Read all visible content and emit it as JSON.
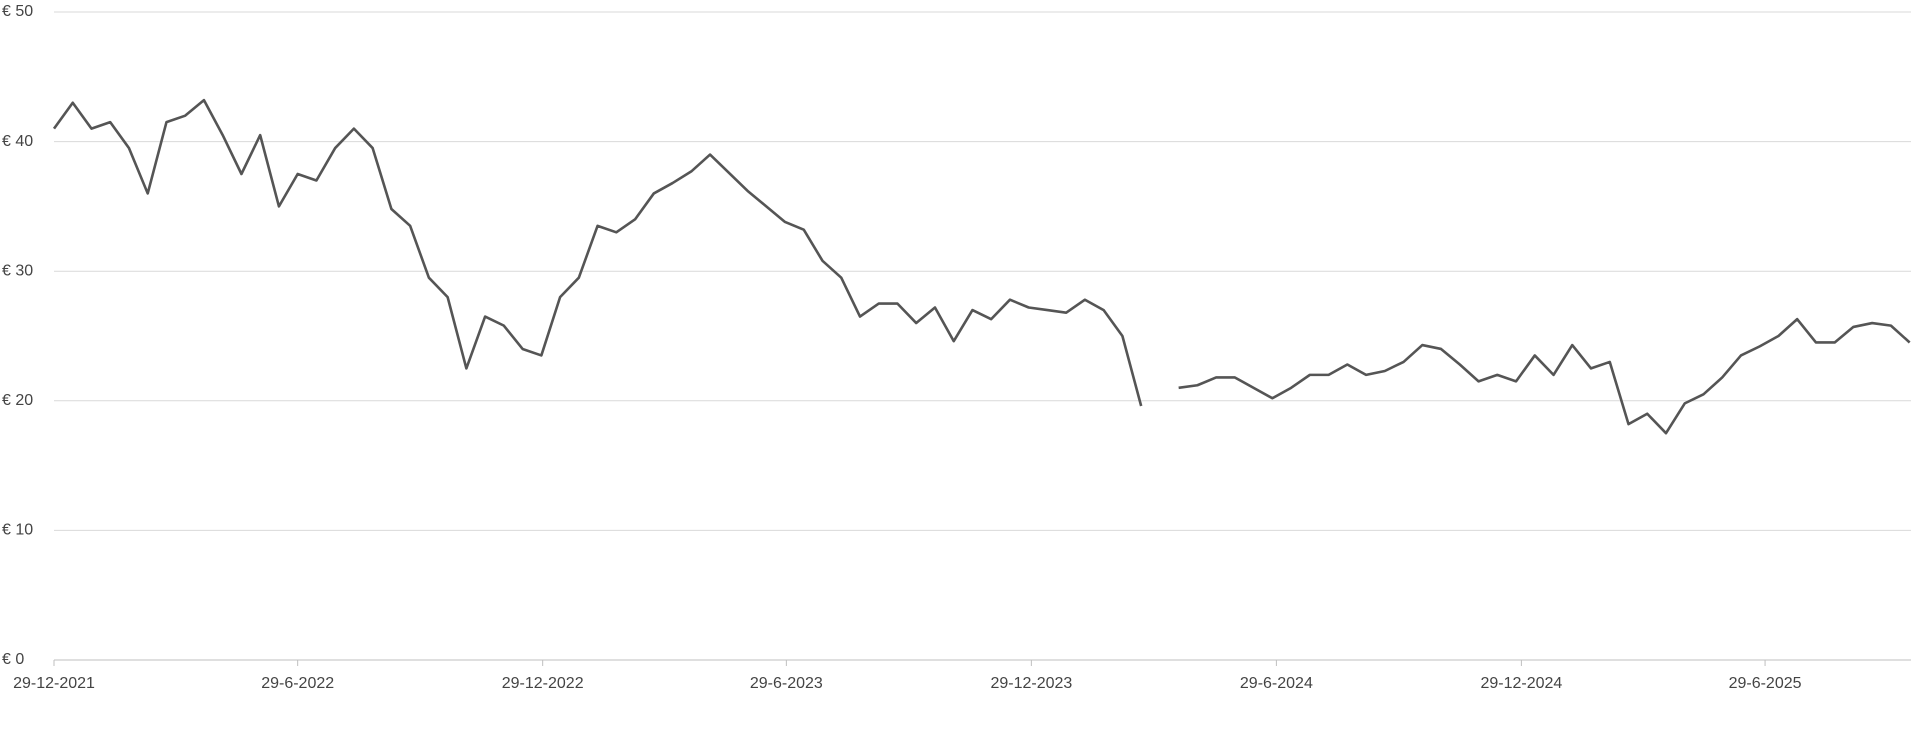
{
  "chart_data": {
    "type": "line",
    "x": [
      "2021-12-29",
      "2022-01-12",
      "2022-01-26",
      "2022-02-09",
      "2022-02-23",
      "2022-03-09",
      "2022-03-23",
      "2022-04-06",
      "2022-04-20",
      "2022-05-04",
      "2022-05-18",
      "2022-06-01",
      "2022-06-15",
      "2022-06-29",
      "2022-07-13",
      "2022-07-27",
      "2022-08-10",
      "2022-08-24",
      "2022-09-07",
      "2022-09-21",
      "2022-10-05",
      "2022-10-19",
      "2022-11-02",
      "2022-11-16",
      "2022-11-30",
      "2022-12-14",
      "2022-12-28",
      "2023-01-11",
      "2023-01-25",
      "2023-02-08",
      "2023-02-22",
      "2023-03-08",
      "2023-03-22",
      "2023-04-05",
      "2023-04-19",
      "2023-05-03",
      "2023-05-17",
      "2023-05-31",
      "2023-06-14",
      "2023-06-28",
      "2023-07-12",
      "2023-07-26",
      "2023-08-09",
      "2023-08-23",
      "2023-09-06",
      "2023-09-20",
      "2023-10-04",
      "2023-10-18",
      "2023-11-01",
      "2023-11-15",
      "2023-11-29",
      "2023-12-13",
      "2023-12-27",
      "2024-01-10",
      "2024-01-24",
      "2024-02-07",
      "2024-02-21",
      "2024-03-06",
      "2024-03-20",
      "2024-04-03",
      "2024-04-17",
      "2024-05-01",
      "2024-05-15",
      "2024-05-29",
      "2024-06-12",
      "2024-06-26",
      "2024-07-10",
      "2024-07-24",
      "2024-08-07",
      "2024-08-21",
      "2024-09-04",
      "2024-09-18",
      "2024-10-02",
      "2024-10-16",
      "2024-10-30",
      "2024-11-13",
      "2024-11-27",
      "2024-12-11",
      "2024-12-25",
      "2025-01-08",
      "2025-01-22",
      "2025-02-05",
      "2025-02-19",
      "2025-03-05",
      "2025-03-19",
      "2025-04-02",
      "2025-04-16",
      "2025-04-30",
      "2025-05-14",
      "2025-05-28",
      "2025-06-11",
      "2025-06-25",
      "2025-07-09",
      "2025-07-23",
      "2025-08-06",
      "2025-08-20",
      "2025-09-03",
      "2025-09-17",
      "2025-10-01",
      "2025-10-15"
    ],
    "values": [
      41,
      43,
      41,
      41.5,
      39.5,
      36,
      41.5,
      42,
      43.2,
      40.5,
      37.5,
      40.5,
      35,
      37.5,
      37,
      39.5,
      41,
      39.5,
      34.8,
      33.5,
      29.5,
      28,
      22.5,
      26.5,
      25.8,
      24,
      23.5,
      28,
      29.5,
      33.5,
      33,
      34,
      36,
      36.8,
      37.7,
      39,
      37.6,
      36.2,
      35,
      33.8,
      33.2,
      30.8,
      29.5,
      26.5,
      27.5,
      27.5,
      26,
      27.2,
      24.6,
      27,
      26.3,
      27.8,
      27.2,
      27,
      26.8,
      27.8,
      27,
      25,
      19.6,
      null,
      21,
      21.2,
      21.8,
      21.8,
      21,
      20.2,
      21,
      22,
      22,
      22.8,
      22,
      22.3,
      23,
      24.3,
      24,
      22.8,
      21.5,
      22,
      21.5,
      23.5,
      22,
      24.3,
      22.5,
      23,
      18.2,
      19,
      17.5,
      19.8,
      20.5,
      21.8,
      23.5,
      24.2,
      25,
      26.3,
      24.5,
      24.5,
      25.7,
      26,
      25.8,
      24.5
    ],
    "color": "#555555",
    "xlim": [
      "2021-12-29",
      "2025-10-16"
    ],
    "xticks": [
      {
        "value": "2021-12-29",
        "label": "29-12-2021"
      },
      {
        "value": "2022-06-29",
        "label": "29-6-2022"
      },
      {
        "value": "2022-12-29",
        "label": "29-12-2022"
      },
      {
        "value": "2023-06-29",
        "label": "29-6-2023"
      },
      {
        "value": "2023-12-29",
        "label": "29-12-2023"
      },
      {
        "value": "2024-06-29",
        "label": "29-6-2024"
      },
      {
        "value": "2024-12-29",
        "label": "29-12-2024"
      },
      {
        "value": "2025-06-29",
        "label": "29-6-2025"
      }
    ],
    "ylim": [
      0,
      50
    ],
    "yticks": [
      {
        "value": 0,
        "label": "€ 0"
      },
      {
        "value": 10,
        "label": "€ 10"
      },
      {
        "value": 20,
        "label": "€ 20"
      },
      {
        "value": 30,
        "label": "€ 30"
      },
      {
        "value": 40,
        "label": "€ 40"
      },
      {
        "value": 50,
        "label": "€ 50"
      }
    ],
    "grid": true
  }
}
